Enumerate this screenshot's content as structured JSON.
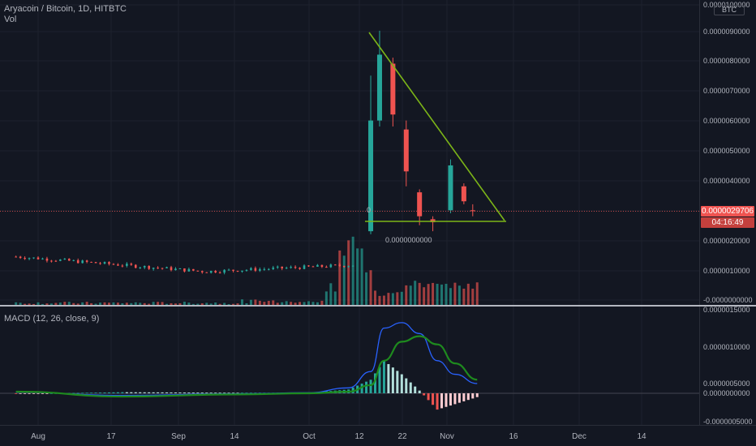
{
  "header": {
    "symbol_line": "Aryacoin / Bitcoin, 1D, HITBTC",
    "volume_label": "Vol",
    "currency_badge": "BTC",
    "macd_label": "MACD (12, 26, close, 9)"
  },
  "price_scale": {
    "ticks": [
      "0.0000100000",
      "0.0000090000",
      "0.0000080000",
      "0.0000070000",
      "0.0000060000",
      "0.0000050000",
      "0.0000040000",
      "0.0000030000",
      "0.0000020000",
      "0.0000010000",
      "-0.0000000000"
    ],
    "last_price": "0.0000029706",
    "countdown": "04:16:49",
    "zero_label_left": "0",
    "zero_label_bottom": "0.0000000000"
  },
  "macd_scale": {
    "ticks": [
      "0.0000015000",
      "0.0000010000",
      "0.0000005000",
      "0.0000000000",
      "-0.0000005000"
    ]
  },
  "time_scale": {
    "labels": [
      "Aug",
      "17",
      "Sep",
      "14",
      "Oct",
      "12",
      "22",
      "Nov",
      "16",
      "Dec",
      "14"
    ]
  },
  "colors": {
    "background": "#131722",
    "up": "#26a69a",
    "down": "#ef5350",
    "trendline": "#7cb518",
    "macd_line": "#2962ff",
    "signal_line": "#1e8a1e",
    "last_price_line": "#ef5350"
  },
  "chart_data": [
    {
      "type": "candlestick",
      "title": "Aryacoin / Bitcoin, 1D, HITBTC",
      "y_unit": "BTC",
      "ylim": [
        0,
        1e-05
      ],
      "x_range": [
        "2020-07-27",
        "2020-12-26"
      ],
      "ohlc": [
        {
          "date": "2020-07-27",
          "open": 1.48e-06,
          "high": 1.6e-06,
          "low": 1.35e-06,
          "close": 1.4e-06
        },
        {
          "date": "2020-08-05",
          "open": 1.38e-06,
          "high": 1.45e-06,
          "low": 1.25e-06,
          "close": 1.3e-06
        },
        {
          "date": "2020-08-15",
          "open": 1.12e-06,
          "high": 1.2e-06,
          "low": 1e-06,
          "close": 1.05e-06
        },
        {
          "date": "2020-08-28",
          "open": 9e-07,
          "high": 9.8e-07,
          "low": 8e-07,
          "close": 8.5e-07
        },
        {
          "date": "2020-09-10",
          "open": 9.8e-07,
          "high": 1.15e-06,
          "low": 9.2e-07,
          "close": 1.08e-06
        },
        {
          "date": "2020-09-22",
          "open": 1.18e-06,
          "high": 1.55e-06,
          "low": 1.1e-06,
          "close": 1.4e-06
        },
        {
          "date": "2020-10-02",
          "open": 1.08e-06,
          "high": 1.18e-06,
          "low": 1e-06,
          "close": 1.15e-06
        },
        {
          "date": "2020-10-10",
          "open": 1.5e-06,
          "high": 2e-06,
          "low": 1.45e-06,
          "close": 1.85e-06
        },
        {
          "date": "2020-10-15",
          "open": 2.3e-06,
          "high": 7.5e-06,
          "low": 2.2e-06,
          "close": 6e-06
        },
        {
          "date": "2020-10-17",
          "open": 6e-06,
          "high": 9e-06,
          "low": 5.8e-06,
          "close": 8.2e-06
        },
        {
          "date": "2020-10-20",
          "open": 7.9e-06,
          "high": 8.1e-06,
          "low": 5.8e-06,
          "close": 6.2e-06
        },
        {
          "date": "2020-10-23",
          "open": 5.7e-06,
          "high": 6e-06,
          "low": 3.8e-06,
          "close": 4.3e-06
        },
        {
          "date": "2020-10-26",
          "open": 3.6e-06,
          "high": 3.7e-06,
          "low": 2.5e-06,
          "close": 2.8e-06
        },
        {
          "date": "2020-10-29",
          "open": 2.7e-06,
          "high": 2.8e-06,
          "low": 2.3e-06,
          "close": 2.6e-06
        },
        {
          "date": "2020-11-02",
          "open": 3e-06,
          "high": 4.7e-06,
          "low": 2.9e-06,
          "close": 4.5e-06
        },
        {
          "date": "2020-11-05",
          "open": 3.8e-06,
          "high": 3.9e-06,
          "low": 3.2e-06,
          "close": 3.3e-06
        },
        {
          "date": "2020-11-07",
          "open": 3e-06,
          "high": 3.2e-06,
          "low": 2.8e-06,
          "close": 2.9706e-06
        }
      ],
      "trendlines": [
        {
          "name": "descending",
          "from": {
            "date": "2020-10-14",
            "price": 9.1e-06
          },
          "to": {
            "date": "2020-11-14",
            "price": 2.7e-06
          }
        },
        {
          "name": "support",
          "from": {
            "date": "2020-10-13",
            "price": 2.7e-06
          },
          "to": {
            "date": "2020-11-14",
            "price": 2.7e-06
          }
        }
      ]
    },
    {
      "type": "bar",
      "title": "Vol",
      "note": "relative volume, unlabeled scale",
      "x": [
        "2020-09-01",
        "2020-09-20",
        "2020-10-05",
        "2020-10-08",
        "2020-10-10",
        "2020-10-12",
        "2020-10-14",
        "2020-10-17",
        "2020-10-21",
        "2020-10-25",
        "2020-10-29",
        "2020-11-02",
        "2020-11-06"
      ],
      "values": [
        2,
        5,
        10,
        30,
        40,
        45,
        30,
        15,
        12,
        18,
        16,
        15,
        13
      ]
    },
    {
      "type": "line",
      "title": "MACD (12, 26, close, 9)",
      "ylim": [
        -5e-07,
        1.5e-06
      ],
      "x": [
        "2020-07-27",
        "2020-08-20",
        "2020-09-15",
        "2020-10-01",
        "2020-10-10",
        "2020-10-15",
        "2020-10-18",
        "2020-10-22",
        "2020-10-26",
        "2020-10-30",
        "2020-11-03",
        "2020-11-08"
      ],
      "series": [
        {
          "name": "MACD",
          "values": [
            2e-08,
            -4e-08,
            -1e-08,
            1e-08,
            1e-07,
            4e-07,
            1.2e-06,
            1.3e-06,
            1.1e-06,
            6e-07,
            3.5e-07,
            1.8e-07
          ]
        },
        {
          "name": "Signal",
          "values": [
            3e-08,
            -6e-08,
            -2e-08,
            0.0,
            3e-08,
            1.5e-07,
            6e-07,
            9.5e-07,
            1.05e-06,
            9e-07,
            5.5e-07,
            2.5e-07
          ]
        },
        {
          "name": "Histogram",
          "values": [
            -1e-08,
            2e-08,
            1e-08,
            1e-08,
            7e-08,
            2.5e-07,
            6e-07,
            3.5e-07,
            5e-08,
            -3e-07,
            -2e-07,
            -7e-08
          ]
        }
      ]
    }
  ]
}
